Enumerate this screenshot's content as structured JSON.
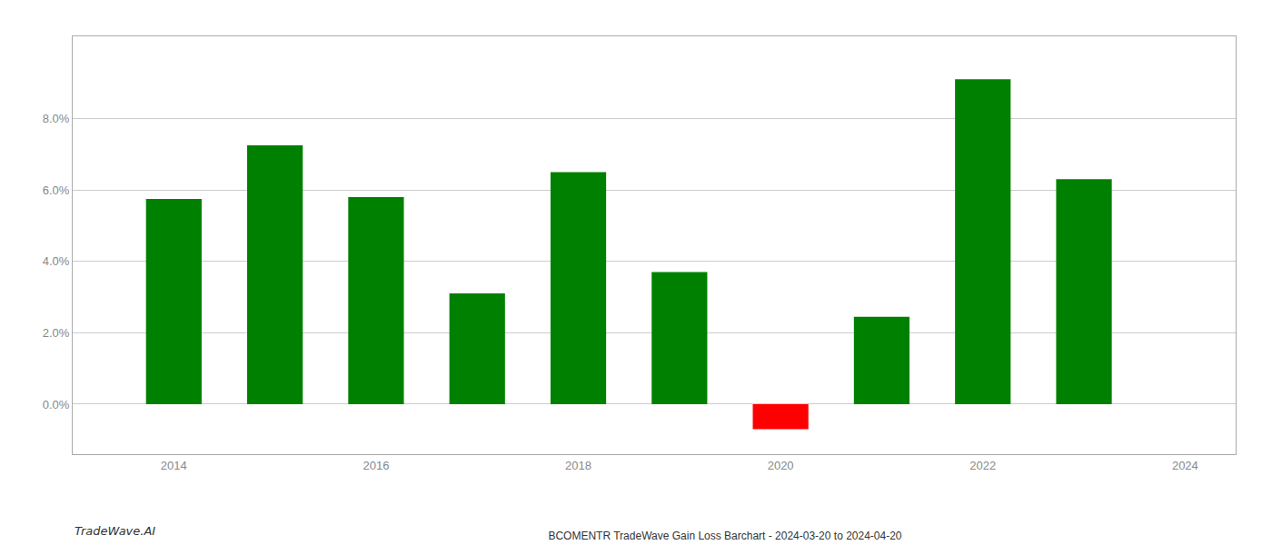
{
  "chart_data": {
    "type": "bar",
    "title": "BCOMENTR TradeWave Gain Loss Barchart - 2024-03-20 to 2024-04-20",
    "annotations": [
      "TradeWave.AI"
    ],
    "x": [
      2014,
      2015,
      2016,
      2017,
      2018,
      2019,
      2020,
      2021,
      2022,
      2023
    ],
    "values": [
      0.0575,
      0.0725,
      0.058,
      0.031,
      0.065,
      0.037,
      -0.007,
      0.0245,
      0.091,
      0.063
    ],
    "colors": [
      "#008000",
      "#008000",
      "#008000",
      "#008000",
      "#008000",
      "#008000",
      "#ff0000",
      "#008000",
      "#008000",
      "#008000"
    ],
    "xlim": [
      2013.0,
      2024.5
    ],
    "xticks": [
      2014,
      2016,
      2018,
      2020,
      2022,
      2024
    ],
    "ylim": [
      -0.014,
      0.103
    ],
    "yticks": [
      {
        "value": 0.0,
        "label": "0.0%"
      },
      {
        "value": 0.02,
        "label": "2.0%"
      },
      {
        "value": 0.04,
        "label": "4.0%"
      },
      {
        "value": 0.06,
        "label": "6.0%"
      },
      {
        "value": 0.08,
        "label": "8.0%"
      }
    ],
    "grid": true
  }
}
